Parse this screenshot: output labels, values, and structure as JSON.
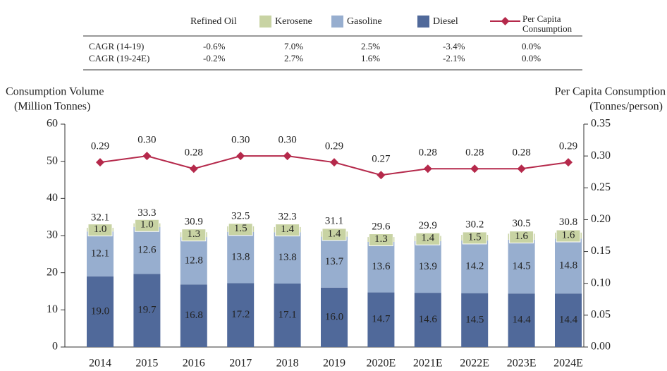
{
  "chart_data": {
    "type": "bar",
    "categories": [
      "2014",
      "2015",
      "2016",
      "2017",
      "2018",
      "2019",
      "2020E",
      "2021E",
      "2022E",
      "2023E",
      "2024E"
    ],
    "series": [
      {
        "name": "Refined Oil",
        "values": [
          32.1,
          33.3,
          30.9,
          32.5,
          32.3,
          31.1,
          29.6,
          29.9,
          30.2,
          30.5,
          30.8
        ]
      },
      {
        "name": "Kerosene",
        "color": "#c8d3a3",
        "values": [
          1.0,
          1.0,
          1.3,
          1.5,
          1.4,
          1.4,
          1.3,
          1.4,
          1.5,
          1.6,
          1.6
        ],
        "value_labels": [
          "1.0",
          "1.0",
          "1.3",
          "1.5",
          "1.4",
          "1.4",
          "1.3",
          "1.4",
          "1.5",
          "1.6",
          "1.6"
        ]
      },
      {
        "name": "Gasoline",
        "color": "#97aecf",
        "values": [
          12.1,
          12.6,
          12.8,
          13.8,
          13.8,
          13.7,
          13.6,
          13.9,
          14.2,
          14.5,
          14.8
        ]
      },
      {
        "name": "Diesel",
        "color": "#50699a",
        "values": [
          19.0,
          19.7,
          16.8,
          17.2,
          17.1,
          16.0,
          14.7,
          14.6,
          14.5,
          14.4,
          14.4
        ],
        "value_labels": [
          "19.0",
          "19.7",
          "16.8",
          "17.2",
          "17.1",
          "16.0",
          "14.7",
          "14.6",
          "14.5",
          "14.4",
          "14.4"
        ]
      },
      {
        "name": "Per Capita Consumption",
        "color": "#b5294b",
        "axis": "y2",
        "values": [
          0.29,
          0.3,
          0.28,
          0.3,
          0.3,
          0.29,
          0.27,
          0.28,
          0.28,
          0.28,
          0.29
        ],
        "value_labels": [
          "0.29",
          "0.30",
          "0.28",
          "0.30",
          "0.30",
          "0.29",
          "0.27",
          "0.28",
          "0.28",
          "0.28",
          "0.29"
        ]
      }
    ],
    "ylabel": [
      "Consumption Volume",
      "(Million Tonnes)"
    ],
    "y2label": [
      "Per Capita Consumption",
      "(Tonnes/person)"
    ],
    "ylim": [
      0,
      60
    ],
    "yticks": [
      0,
      10,
      20,
      30,
      40,
      50,
      60
    ],
    "y2lim": [
      0,
      0.35
    ],
    "y2ticks": [
      {
        "value": 0,
        "label": "0.00"
      },
      {
        "value": 0.05,
        "label": "0.05"
      },
      {
        "value": 0.1,
        "label": "0.10"
      },
      {
        "value": 0.15,
        "label": "0.15"
      },
      {
        "value": 0.2,
        "label": "0.20"
      },
      {
        "value": 0.25,
        "label": "0.25"
      },
      {
        "value": 0.3,
        "label": "0.30"
      },
      {
        "value": 0.35,
        "label": "0.35"
      }
    ],
    "cagr_table": {
      "rows": [
        {
          "label": "CAGR (14-19)",
          "values": [
            "-0.6%",
            "7.0%",
            "2.5%",
            "-3.4%",
            "0.0%"
          ]
        },
        {
          "label": "CAGR (19-24E)",
          "values": [
            "-0.2%",
            "2.7%",
            "1.6%",
            "-2.1%",
            "0.0%"
          ]
        }
      ]
    }
  }
}
